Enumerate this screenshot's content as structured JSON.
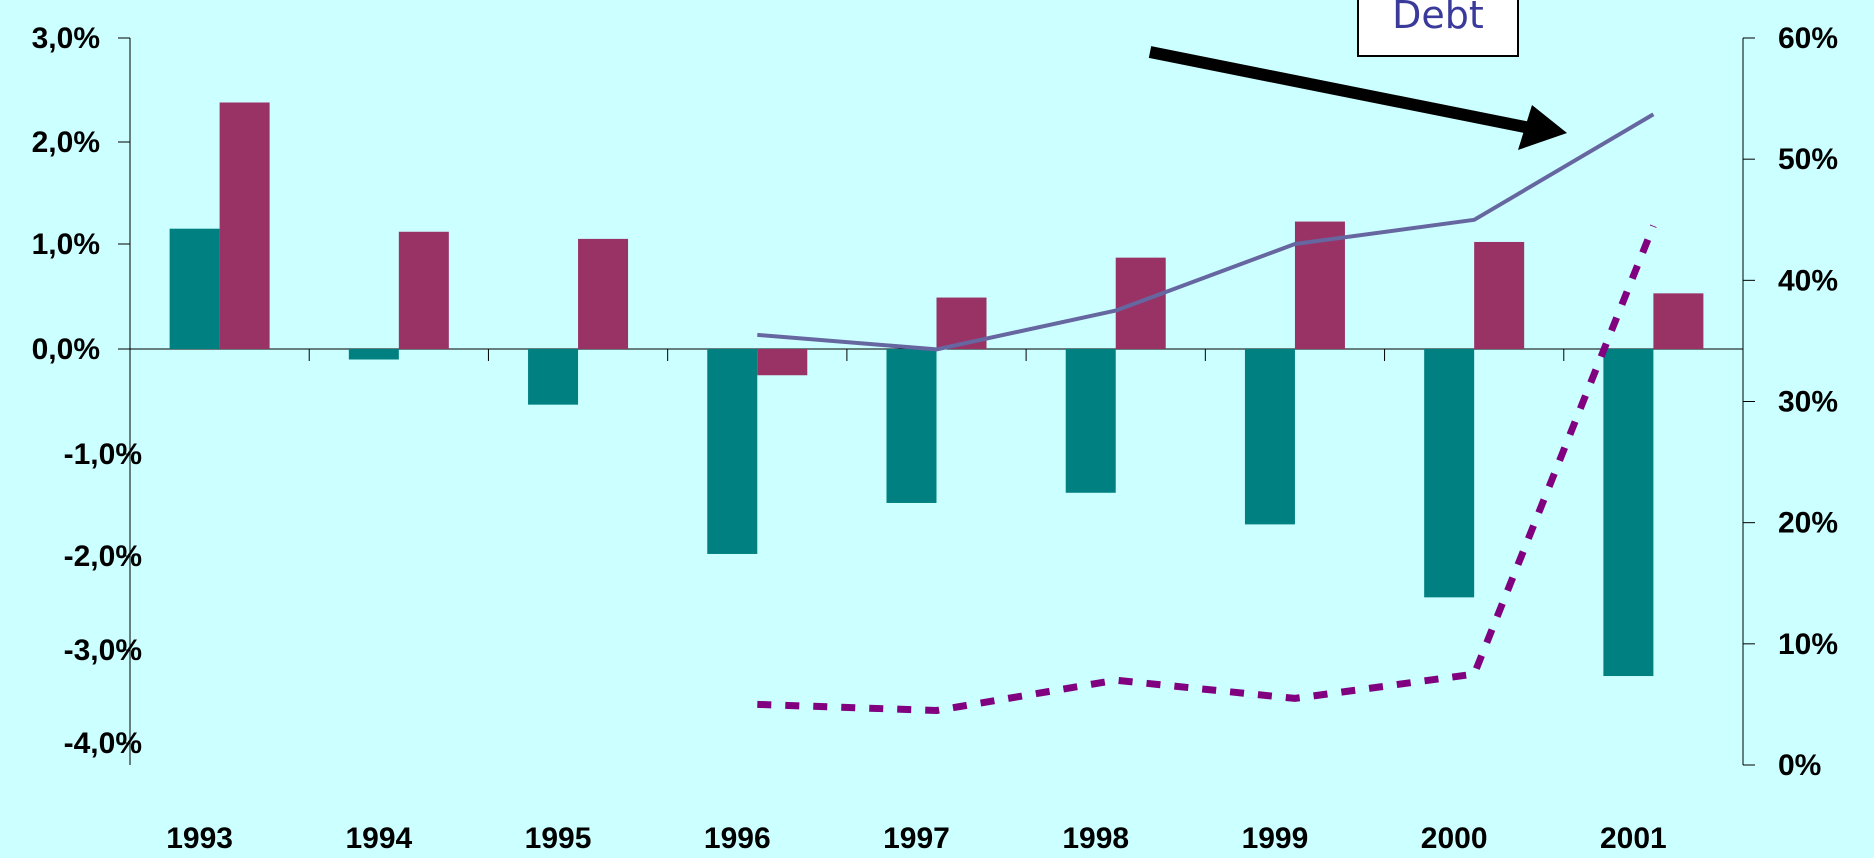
{
  "chart_data": {
    "type": "bar",
    "categories": [
      "1993",
      "1994",
      "1995",
      "1996",
      "1997",
      "1998",
      "1999",
      "2000",
      "2001"
    ],
    "series": [
      {
        "values": [
          1.15,
          -0.1,
          -0.53,
          -1.98,
          -1.48,
          -1.38,
          -1.69,
          -2.44,
          -3.28
        ],
        "color": "#008080",
        "axis": "left"
      },
      {
        "values": [
          2.38,
          1.12,
          1.05,
          -0.25,
          0.49,
          0.87,
          1.22,
          1.02,
          0.53
        ],
        "color": "#993366",
        "axis": "left"
      },
      {
        "values": [
          null,
          null,
          null,
          35.5,
          34.3,
          37.5,
          43,
          45,
          53.7
        ],
        "color": "#6666a0",
        "axis": "right",
        "style": "solid-line"
      },
      {
        "values": [
          null,
          null,
          null,
          5,
          4.5,
          7,
          5.5,
          7.5,
          44.5
        ],
        "color": "#800080",
        "axis": "right",
        "style": "dotted-line"
      }
    ],
    "left_axis": {
      "ylim": [
        -4,
        3
      ],
      "ticks": [
        3,
        2,
        1,
        0,
        -1,
        -2,
        -3,
        -4
      ],
      "tick_labels": [
        "3,0%",
        "2,0%",
        "1,0%",
        "0,0%",
        "-1,0%",
        "-2,0%",
        "-3,0%",
        "-4,0%"
      ]
    },
    "right_axis": {
      "ylim": [
        0,
        60
      ],
      "ticks": [
        60,
        50,
        40,
        30,
        20,
        10,
        0
      ],
      "tick_labels": [
        "60%",
        "50%",
        "40%",
        "30%",
        "20%",
        "10%",
        "0%"
      ]
    },
    "annotation": {
      "text": "Debt",
      "points_to": "2001"
    },
    "grid": false,
    "legend": "none"
  }
}
